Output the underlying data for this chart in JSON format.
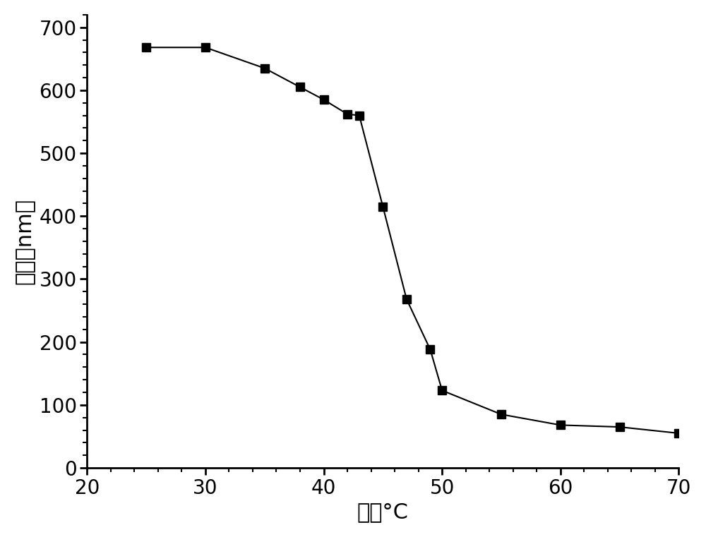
{
  "x": [
    25,
    30,
    35,
    38,
    40,
    42,
    43,
    45,
    47,
    49,
    50,
    55,
    60,
    65,
    70
  ],
  "y": [
    668,
    668,
    635,
    605,
    585,
    562,
    560,
    415,
    268,
    188,
    123,
    85,
    68,
    65,
    55
  ],
  "xlim": [
    20,
    70
  ],
  "ylim": [
    0,
    720
  ],
  "xticks": [
    20,
    30,
    40,
    50,
    60,
    70
  ],
  "yticks": [
    0,
    100,
    200,
    300,
    400,
    500,
    600,
    700
  ],
  "xlabel": "温度°C",
  "ylabel": "粒径（nm）",
  "line_color": "#000000",
  "marker": "s",
  "markersize": 9,
  "linewidth": 1.5,
  "xlabel_fontsize": 22,
  "ylabel_fontsize": 22,
  "tick_fontsize": 20,
  "figure_bg": "#ffffff"
}
